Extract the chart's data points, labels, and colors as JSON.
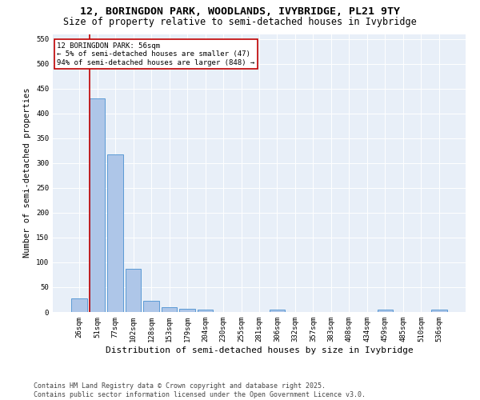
{
  "title1": "12, BORINGDON PARK, WOODLANDS, IVYBRIDGE, PL21 9TY",
  "title2": "Size of property relative to semi-detached houses in Ivybridge",
  "xlabel": "Distribution of semi-detached houses by size in Ivybridge",
  "ylabel": "Number of semi-detached properties",
  "categories": [
    "26sqm",
    "51sqm",
    "77sqm",
    "102sqm",
    "128sqm",
    "153sqm",
    "179sqm",
    "204sqm",
    "230sqm",
    "255sqm",
    "281sqm",
    "306sqm",
    "332sqm",
    "357sqm",
    "383sqm",
    "408sqm",
    "434sqm",
    "459sqm",
    "485sqm",
    "510sqm",
    "536sqm"
  ],
  "values": [
    28,
    430,
    318,
    87,
    23,
    10,
    7,
    5,
    0,
    0,
    0,
    5,
    0,
    0,
    0,
    0,
    0,
    5,
    0,
    0,
    5
  ],
  "bar_color": "#aec6e8",
  "bar_edge_color": "#5b9bd5",
  "vline_color": "#c00000",
  "vline_x_index": 1,
  "annotation_text": "12 BORINGDON PARK: 56sqm\n← 5% of semi-detached houses are smaller (47)\n94% of semi-detached houses are larger (848) →",
  "ylim": [
    0,
    560
  ],
  "yticks": [
    0,
    50,
    100,
    150,
    200,
    250,
    300,
    350,
    400,
    450,
    500,
    550
  ],
  "bg_color": "#e8eff8",
  "footer_text": "Contains HM Land Registry data © Crown copyright and database right 2025.\nContains public sector information licensed under the Open Government Licence v3.0.",
  "title1_fontsize": 9.5,
  "title2_fontsize": 8.5,
  "xlabel_fontsize": 8,
  "ylabel_fontsize": 7.5,
  "tick_fontsize": 6.5,
  "footer_fontsize": 6,
  "annotation_fontsize": 6.5
}
